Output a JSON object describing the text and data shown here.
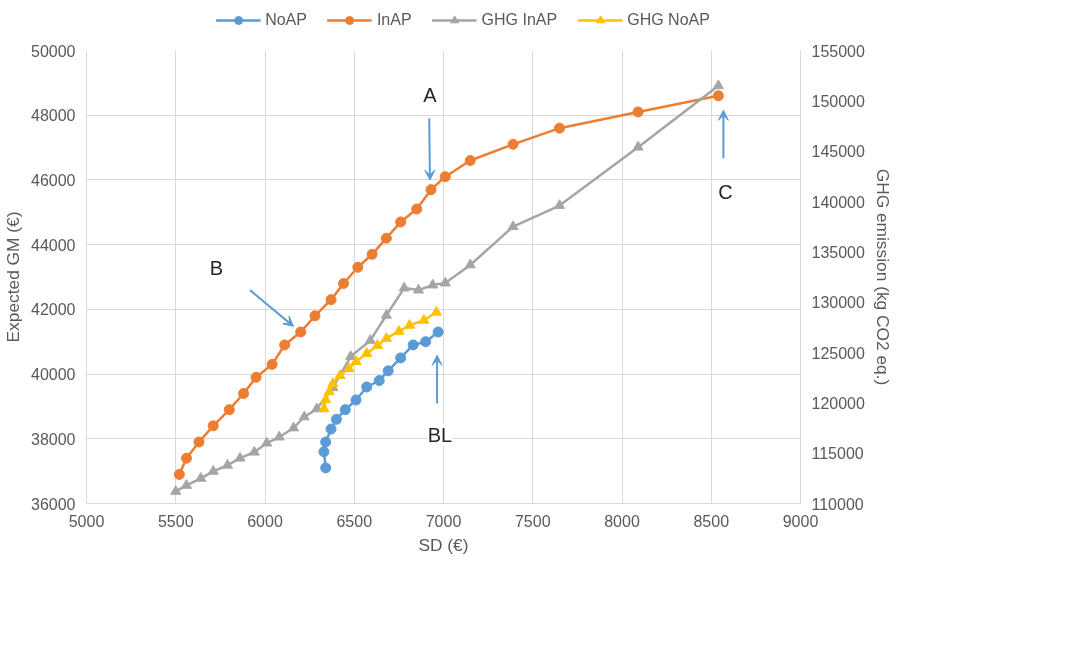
{
  "chart_data": {
    "type": "line",
    "xlabel": "SD (€)",
    "ylabel": "Expected GM (€)",
    "y2label": "GHG emission (kg CO2 eq.)",
    "xlim": [
      5000,
      9000
    ],
    "xticks": [
      5000,
      5500,
      6000,
      6500,
      7000,
      7500,
      8000,
      8500,
      9000
    ],
    "ylim": [
      36000,
      50000
    ],
    "yticks": [
      36000,
      38000,
      40000,
      42000,
      44000,
      46000,
      48000,
      50000
    ],
    "y2lim": [
      110000,
      155000
    ],
    "y2ticks": [
      110000,
      115000,
      120000,
      125000,
      130000,
      135000,
      140000,
      145000,
      150000,
      155000
    ],
    "grid": true,
    "legend": "top",
    "line_style": "solid",
    "series": [
      {
        "name": "NoAP",
        "color": "#5b9bd5",
        "marker": "circle",
        "x": [
          6340,
          6330,
          6340,
          6370,
          6400,
          6450,
          6510,
          6570,
          6640,
          6690,
          6760,
          6830,
          6900,
          6970
        ],
        "values": [
          37100,
          37600,
          37900,
          38300,
          38600,
          38900,
          39200,
          39600,
          39800,
          40100,
          40500,
          40900,
          41000,
          41300
        ]
      },
      {
        "name": "InAP",
        "color": "#ed7d31",
        "marker": "circle",
        "x": [
          5520,
          5560,
          5630,
          5710,
          5800,
          5880,
          5950,
          6040,
          6110,
          6200,
          6280,
          6370,
          6440,
          6520,
          6600,
          6680,
          6760,
          6850,
          6930,
          7010,
          7150,
          7390,
          7650,
          8090,
          8540
        ],
        "values": [
          36900,
          37400,
          37900,
          38400,
          38900,
          39400,
          39900,
          40300,
          40900,
          41300,
          41800,
          42300,
          42800,
          43300,
          43700,
          44200,
          44700,
          45100,
          45700,
          46100,
          46600,
          47100,
          47600,
          48100,
          48600
        ]
      },
      {
        "name": "GHG InAP",
        "color": "#a5a5a5",
        "marker": "triangle",
        "axis": "y2",
        "x": [
          5500,
          5560,
          5640,
          5710,
          5790,
          5860,
          5940,
          6010,
          6080,
          6160,
          6220,
          6290,
          6380,
          6480,
          6590,
          6680,
          6780,
          6860,
          6940,
          7010,
          7150,
          7390,
          7650,
          8090,
          8540
        ],
        "values": [
          111200,
          111800,
          112500,
          113200,
          113800,
          114500,
          115100,
          116000,
          116600,
          117500,
          118600,
          119400,
          121500,
          124600,
          126200,
          128700,
          131400,
          131200,
          131700,
          131900,
          133700,
          137500,
          139600,
          145400,
          151500
        ]
      },
      {
        "name": "GHG NoAP",
        "color": "#ffc000",
        "marker": "triangle",
        "axis": "y2",
        "x": [
          6330,
          6340,
          6360,
          6380,
          6420,
          6470,
          6510,
          6570,
          6630,
          6680,
          6750,
          6810,
          6890,
          6960
        ],
        "values": [
          119400,
          120300,
          121100,
          121900,
          122700,
          123400,
          124100,
          124900,
          125700,
          126400,
          127100,
          127700,
          128200,
          129000
        ]
      }
    ],
    "annotations": [
      "A",
      "B",
      "BL",
      "C"
    ]
  }
}
